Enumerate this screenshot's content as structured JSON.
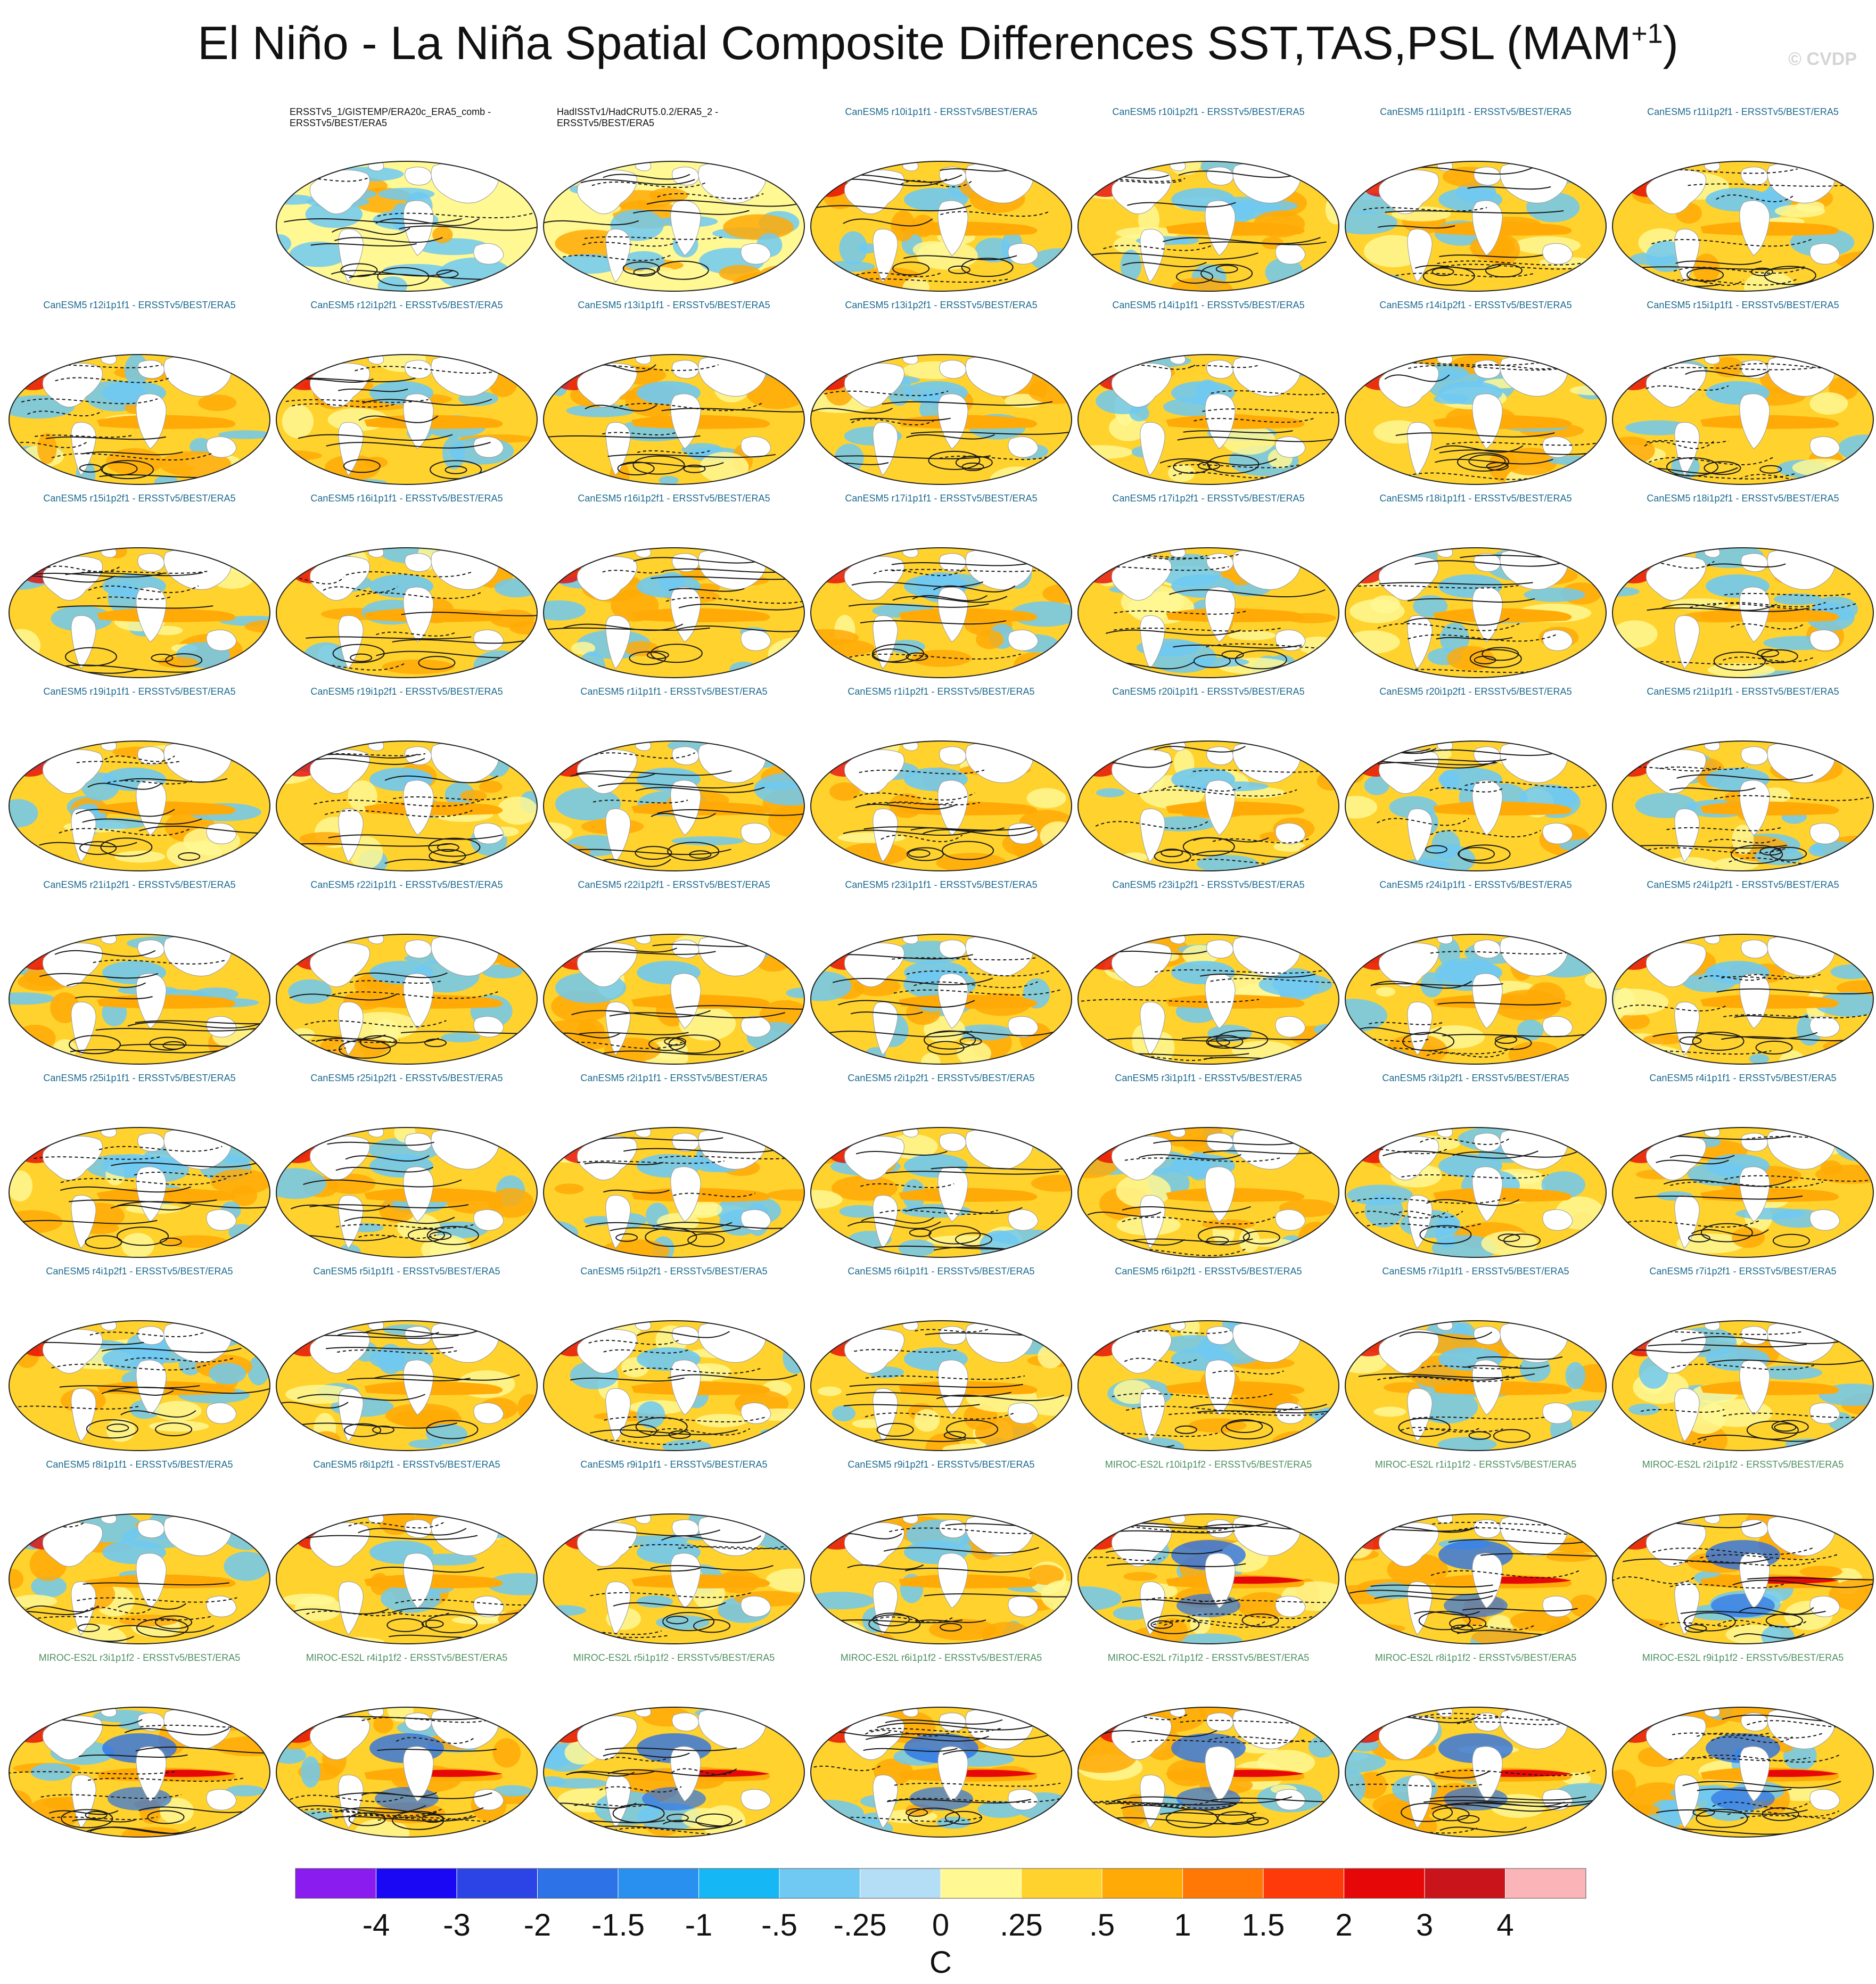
{
  "title": {
    "main": "El Niño - La Niña Spatial Composite Differences SST,TAS,PSL (MAM",
    "superscript": "+1",
    "close": ")"
  },
  "watermark": "© CVDP",
  "panels": [
    {
      "row": 0,
      "col": 1,
      "label": "ERSSTv5_1/GISTEMP/ERA20c_ERA5_comb - ERSSTv5/BEST/ERA5",
      "group": "obs"
    },
    {
      "row": 0,
      "col": 2,
      "label": "HadISSTv1/HadCRUT5.0.2/ERA5_2 - ERSSTv5/BEST/ERA5",
      "group": "obs"
    },
    {
      "row": 0,
      "col": 3,
      "label": "CanESM5 r10i1p1f1 - ERSSTv5/BEST/ERA5",
      "group": "can"
    },
    {
      "row": 0,
      "col": 4,
      "label": "CanESM5 r10i1p2f1 - ERSSTv5/BEST/ERA5",
      "group": "can"
    },
    {
      "row": 0,
      "col": 5,
      "label": "CanESM5 r11i1p1f1 - ERSSTv5/BEST/ERA5",
      "group": "can"
    },
    {
      "row": 0,
      "col": 6,
      "label": "CanESM5 r11i1p2f1 - ERSSTv5/BEST/ERA5",
      "group": "can"
    },
    {
      "row": 1,
      "col": 0,
      "label": "CanESM5 r12i1p1f1 - ERSSTv5/BEST/ERA5",
      "group": "can"
    },
    {
      "row": 1,
      "col": 1,
      "label": "CanESM5 r12i1p2f1 - ERSSTv5/BEST/ERA5",
      "group": "can"
    },
    {
      "row": 1,
      "col": 2,
      "label": "CanESM5 r13i1p1f1 - ERSSTv5/BEST/ERA5",
      "group": "can"
    },
    {
      "row": 1,
      "col": 3,
      "label": "CanESM5 r13i1p2f1 - ERSSTv5/BEST/ERA5",
      "group": "can"
    },
    {
      "row": 1,
      "col": 4,
      "label": "CanESM5 r14i1p1f1 - ERSSTv5/BEST/ERA5",
      "group": "can"
    },
    {
      "row": 1,
      "col": 5,
      "label": "CanESM5 r14i1p2f1 - ERSSTv5/BEST/ERA5",
      "group": "can"
    },
    {
      "row": 1,
      "col": 6,
      "label": "CanESM5 r15i1p1f1 - ERSSTv5/BEST/ERA5",
      "group": "can"
    },
    {
      "row": 2,
      "col": 0,
      "label": "CanESM5 r15i1p2f1 - ERSSTv5/BEST/ERA5",
      "group": "can"
    },
    {
      "row": 2,
      "col": 1,
      "label": "CanESM5 r16i1p1f1 - ERSSTv5/BEST/ERA5",
      "group": "can"
    },
    {
      "row": 2,
      "col": 2,
      "label": "CanESM5 r16i1p2f1 - ERSSTv5/BEST/ERA5",
      "group": "can"
    },
    {
      "row": 2,
      "col": 3,
      "label": "CanESM5 r17i1p1f1 - ERSSTv5/BEST/ERA5",
      "group": "can"
    },
    {
      "row": 2,
      "col": 4,
      "label": "CanESM5 r17i1p2f1 - ERSSTv5/BEST/ERA5",
      "group": "can"
    },
    {
      "row": 2,
      "col": 5,
      "label": "CanESM5 r18i1p1f1 - ERSSTv5/BEST/ERA5",
      "group": "can"
    },
    {
      "row": 2,
      "col": 6,
      "label": "CanESM5 r18i1p2f1 - ERSSTv5/BEST/ERA5",
      "group": "can"
    },
    {
      "row": 3,
      "col": 0,
      "label": "CanESM5 r19i1p1f1 - ERSSTv5/BEST/ERA5",
      "group": "can"
    },
    {
      "row": 3,
      "col": 1,
      "label": "CanESM5 r19i1p2f1 - ERSSTv5/BEST/ERA5",
      "group": "can"
    },
    {
      "row": 3,
      "col": 2,
      "label": "CanESM5 r1i1p1f1 - ERSSTv5/BEST/ERA5",
      "group": "can"
    },
    {
      "row": 3,
      "col": 3,
      "label": "CanESM5 r1i1p2f1 - ERSSTv5/BEST/ERA5",
      "group": "can"
    },
    {
      "row": 3,
      "col": 4,
      "label": "CanESM5 r20i1p1f1 - ERSSTv5/BEST/ERA5",
      "group": "can"
    },
    {
      "row": 3,
      "col": 5,
      "label": "CanESM5 r20i1p2f1 - ERSSTv5/BEST/ERA5",
      "group": "can"
    },
    {
      "row": 3,
      "col": 6,
      "label": "CanESM5 r21i1p1f1 - ERSSTv5/BEST/ERA5",
      "group": "can"
    },
    {
      "row": 4,
      "col": 0,
      "label": "CanESM5 r21i1p2f1 - ERSSTv5/BEST/ERA5",
      "group": "can"
    },
    {
      "row": 4,
      "col": 1,
      "label": "CanESM5 r22i1p1f1 - ERSSTv5/BEST/ERA5",
      "group": "can"
    },
    {
      "row": 4,
      "col": 2,
      "label": "CanESM5 r22i1p2f1 - ERSSTv5/BEST/ERA5",
      "group": "can"
    },
    {
      "row": 4,
      "col": 3,
      "label": "CanESM5 r23i1p1f1 - ERSSTv5/BEST/ERA5",
      "group": "can"
    },
    {
      "row": 4,
      "col": 4,
      "label": "CanESM5 r23i1p2f1 - ERSSTv5/BEST/ERA5",
      "group": "can"
    },
    {
      "row": 4,
      "col": 5,
      "label": "CanESM5 r24i1p1f1 - ERSSTv5/BEST/ERA5",
      "group": "can"
    },
    {
      "row": 4,
      "col": 6,
      "label": "CanESM5 r24i1p2f1 - ERSSTv5/BEST/ERA5",
      "group": "can"
    },
    {
      "row": 5,
      "col": 0,
      "label": "CanESM5 r25i1p1f1 - ERSSTv5/BEST/ERA5",
      "group": "can"
    },
    {
      "row": 5,
      "col": 1,
      "label": "CanESM5 r25i1p2f1 - ERSSTv5/BEST/ERA5",
      "group": "can"
    },
    {
      "row": 5,
      "col": 2,
      "label": "CanESM5 r2i1p1f1 - ERSSTv5/BEST/ERA5",
      "group": "can"
    },
    {
      "row": 5,
      "col": 3,
      "label": "CanESM5 r2i1p2f1 - ERSSTv5/BEST/ERA5",
      "group": "can"
    },
    {
      "row": 5,
      "col": 4,
      "label": "CanESM5 r3i1p1f1 - ERSSTv5/BEST/ERA5",
      "group": "can"
    },
    {
      "row": 5,
      "col": 5,
      "label": "CanESM5 r3i1p2f1 - ERSSTv5/BEST/ERA5",
      "group": "can"
    },
    {
      "row": 5,
      "col": 6,
      "label": "CanESM5 r4i1p1f1 - ERSSTv5/BEST/ERA5",
      "group": "can"
    },
    {
      "row": 6,
      "col": 0,
      "label": "CanESM5 r4i1p2f1 - ERSSTv5/BEST/ERA5",
      "group": "can"
    },
    {
      "row": 6,
      "col": 1,
      "label": "CanESM5 r5i1p1f1 - ERSSTv5/BEST/ERA5",
      "group": "can"
    },
    {
      "row": 6,
      "col": 2,
      "label": "CanESM5 r5i1p2f1 - ERSSTv5/BEST/ERA5",
      "group": "can"
    },
    {
      "row": 6,
      "col": 3,
      "label": "CanESM5 r6i1p1f1 - ERSSTv5/BEST/ERA5",
      "group": "can"
    },
    {
      "row": 6,
      "col": 4,
      "label": "CanESM5 r6i1p2f1 - ERSSTv5/BEST/ERA5",
      "group": "can"
    },
    {
      "row": 6,
      "col": 5,
      "label": "CanESM5 r7i1p1f1 - ERSSTv5/BEST/ERA5",
      "group": "can"
    },
    {
      "row": 6,
      "col": 6,
      "label": "CanESM5 r7i1p2f1 - ERSSTv5/BEST/ERA5",
      "group": "can"
    },
    {
      "row": 7,
      "col": 0,
      "label": "CanESM5 r8i1p1f1 - ERSSTv5/BEST/ERA5",
      "group": "can"
    },
    {
      "row": 7,
      "col": 1,
      "label": "CanESM5 r8i1p2f1 - ERSSTv5/BEST/ERA5",
      "group": "can"
    },
    {
      "row": 7,
      "col": 2,
      "label": "CanESM5 r9i1p1f1 - ERSSTv5/BEST/ERA5",
      "group": "can"
    },
    {
      "row": 7,
      "col": 3,
      "label": "CanESM5 r9i1p2f1 - ERSSTv5/BEST/ERA5",
      "group": "can"
    },
    {
      "row": 7,
      "col": 4,
      "label": "MIROC-ES2L r10i1p1f2 - ERSSTv5/BEST/ERA5",
      "group": "miroc"
    },
    {
      "row": 7,
      "col": 5,
      "label": "MIROC-ES2L r1i1p1f2 - ERSSTv5/BEST/ERA5",
      "group": "miroc"
    },
    {
      "row": 7,
      "col": 6,
      "label": "MIROC-ES2L r2i1p1f2 - ERSSTv5/BEST/ERA5",
      "group": "miroc"
    },
    {
      "row": 8,
      "col": 0,
      "label": "MIROC-ES2L r3i1p1f2 - ERSSTv5/BEST/ERA5",
      "group": "miroc"
    },
    {
      "row": 8,
      "col": 1,
      "label": "MIROC-ES2L r4i1p1f2 - ERSSTv5/BEST/ERA5",
      "group": "miroc"
    },
    {
      "row": 8,
      "col": 2,
      "label": "MIROC-ES2L r5i1p1f2 - ERSSTv5/BEST/ERA5",
      "group": "miroc"
    },
    {
      "row": 8,
      "col": 3,
      "label": "MIROC-ES2L r6i1p1f2 - ERSSTv5/BEST/ERA5",
      "group": "miroc"
    },
    {
      "row": 8,
      "col": 4,
      "label": "MIROC-ES2L r7i1p1f2 - ERSSTv5/BEST/ERA5",
      "group": "miroc"
    },
    {
      "row": 8,
      "col": 5,
      "label": "MIROC-ES2L r8i1p1f2 - ERSSTv5/BEST/ERA5",
      "group": "miroc"
    },
    {
      "row": 8,
      "col": 6,
      "label": "MIROC-ES2L r9i1p1f2 - ERSSTv5/BEST/ERA5",
      "group": "miroc"
    }
  ],
  "colorbar": {
    "unit": "C",
    "tick_labels": [
      "-4",
      "-3",
      "-2",
      "-1.5",
      "-1",
      "-.5",
      "-.25",
      "0",
      ".25",
      ".5",
      "1",
      "1.5",
      "2",
      "3",
      "4"
    ],
    "colors": [
      "#8a1cf0",
      "#1a08f5",
      "#2c44e6",
      "#2d72e6",
      "#2a90f0",
      "#16b7f5",
      "#6fc9f2",
      "#b4def5",
      "#fff893",
      "#ffd22e",
      "#ffaa06",
      "#ff7806",
      "#ff3a0a",
      "#e60808",
      "#c8141a",
      "#fbb4b8"
    ]
  },
  "map_colors": {
    "ocean_warm": "#ffd22e",
    "ocean_pale": "#fff893",
    "cool": "#6fc9f2",
    "cool_strong": "#2d72e6",
    "warm": "#ffaa06",
    "hot": "#e60808",
    "land": "#ffffff",
    "contour": "#1a1a1a"
  }
}
